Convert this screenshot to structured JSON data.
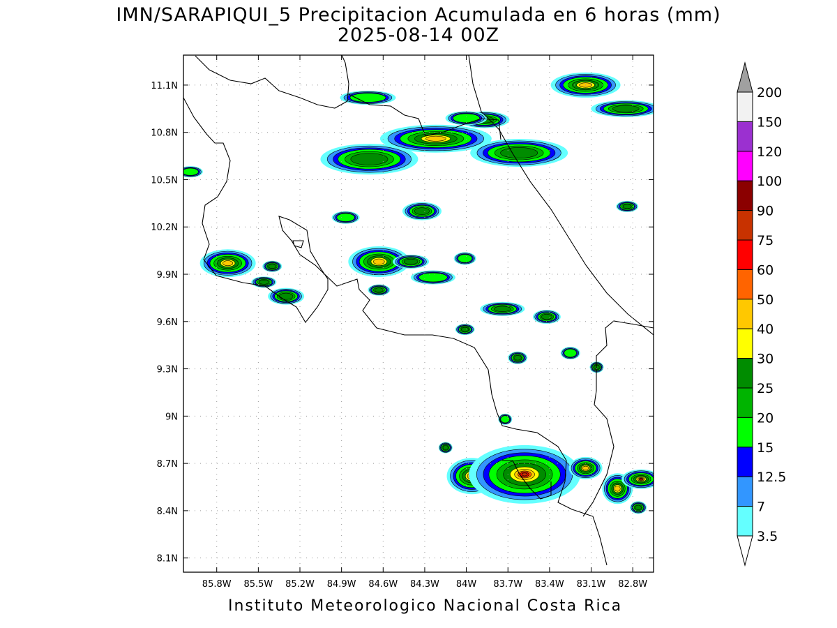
{
  "title": {
    "line1": "IMN/SARAPIQUI_5 Precipitacion Acumulada en 6 horas (mm)",
    "line2": "2025-08-14 00Z"
  },
  "footer": "Instituto Meteorologico Nacional Costa Rica",
  "map": {
    "lon_range": [
      -86.04,
      -82.65
    ],
    "lat_range": [
      8.01,
      11.29
    ],
    "lon_ticks": [
      "85.8W",
      "85.5W",
      "85.2W",
      "84.9W",
      "84.6W",
      "84.3W",
      "84W",
      "83.7W",
      "83.4W",
      "83.1W",
      "82.8W"
    ],
    "lat_ticks": [
      "11.1N",
      "10.8N",
      "10.5N",
      "10.2N",
      "9.9N",
      "9.6N",
      "9.3N",
      "9N",
      "8.7N",
      "8.4N",
      "8.1N"
    ],
    "grid": true
  },
  "colorbar": {
    "labels": [
      "200",
      "150",
      "120",
      "100",
      "90",
      "75",
      "60",
      "50",
      "40",
      "30",
      "25",
      "20",
      "15",
      "12.5",
      "7",
      "3.5"
    ],
    "colors": [
      "#a0a0a0",
      "#f2f2f2",
      "#9b30d0",
      "#ff00ff",
      "#8b0000",
      "#c83200",
      "#ff0000",
      "#ff6400",
      "#ffc800",
      "#ffff00",
      "#008c00",
      "#00b400",
      "#00ff00",
      "#0000ff",
      "#3296ff",
      "#64ffff"
    ]
  },
  "precip_cells": [
    {
      "lon": -85.72,
      "lat": 9.97,
      "rx": 40,
      "ry": 20,
      "level": 3
    },
    {
      "lon": -85.4,
      "lat": 9.95,
      "rx": 14,
      "ry": 8,
      "level": 2
    },
    {
      "lon": -85.46,
      "lat": 9.85,
      "rx": 18,
      "ry": 8,
      "level": 2
    },
    {
      "lon": -85.3,
      "lat": 9.76,
      "rx": 26,
      "ry": 12,
      "level": 2
    },
    {
      "lon": -84.63,
      "lat": 9.98,
      "rx": 44,
      "ry": 22,
      "level": 3
    },
    {
      "lon": -84.63,
      "lat": 9.8,
      "rx": 16,
      "ry": 8,
      "level": 2
    },
    {
      "lon": -84.87,
      "lat": 10.26,
      "rx": 20,
      "ry": 9,
      "level": 1
    },
    {
      "lon": -84.32,
      "lat": 10.3,
      "rx": 28,
      "ry": 13,
      "level": 2
    },
    {
      "lon": -84.24,
      "lat": 9.88,
      "rx": 32,
      "ry": 10,
      "level": 1
    },
    {
      "lon": -84.7,
      "lat": 10.63,
      "rx": 70,
      "ry": 22,
      "level": 2
    },
    {
      "lon": -84.22,
      "lat": 10.76,
      "rx": 80,
      "ry": 20,
      "level": 3
    },
    {
      "lon": -83.62,
      "lat": 10.67,
      "rx": 70,
      "ry": 20,
      "level": 2
    },
    {
      "lon": -83.87,
      "lat": 10.88,
      "rx": 36,
      "ry": 12,
      "level": 2
    },
    {
      "lon": -84.0,
      "lat": 10.89,
      "rx": 30,
      "ry": 10,
      "level": 1
    },
    {
      "lon": -83.14,
      "lat": 11.1,
      "rx": 50,
      "ry": 18,
      "level": 3
    },
    {
      "lon": -82.85,
      "lat": 10.95,
      "rx": 50,
      "ry": 12,
      "level": 2
    },
    {
      "lon": -84.71,
      "lat": 11.02,
      "rx": 40,
      "ry": 10,
      "level": 1
    },
    {
      "lon": -82.84,
      "lat": 10.33,
      "rx": 16,
      "ry": 8,
      "level": 2
    },
    {
      "lon": -85.99,
      "lat": 10.55,
      "rx": 18,
      "ry": 8,
      "level": 1
    },
    {
      "lon": -83.74,
      "lat": 9.68,
      "rx": 32,
      "ry": 10,
      "level": 2
    },
    {
      "lon": -83.42,
      "lat": 9.63,
      "rx": 20,
      "ry": 10,
      "level": 2
    },
    {
      "lon": -84.01,
      "lat": 9.55,
      "rx": 14,
      "ry": 8,
      "level": 2
    },
    {
      "lon": -83.63,
      "lat": 9.37,
      "rx": 14,
      "ry": 9,
      "level": 2
    },
    {
      "lon": -83.25,
      "lat": 9.4,
      "rx": 14,
      "ry": 9,
      "level": 1
    },
    {
      "lon": -83.06,
      "lat": 9.31,
      "rx": 10,
      "ry": 8,
      "level": 2
    },
    {
      "lon": -83.72,
      "lat": 8.98,
      "rx": 10,
      "ry": 8,
      "level": 1
    },
    {
      "lon": -83.96,
      "lat": 8.62,
      "rx": 36,
      "ry": 26,
      "level": 4
    },
    {
      "lon": -83.58,
      "lat": 8.63,
      "rx": 80,
      "ry": 42,
      "level": 5
    },
    {
      "lon": -83.14,
      "lat": 8.67,
      "rx": 24,
      "ry": 16,
      "level": 3
    },
    {
      "lon": -82.91,
      "lat": 8.54,
      "rx": 22,
      "ry": 22,
      "level": 3
    },
    {
      "lon": -82.74,
      "lat": 8.6,
      "rx": 28,
      "ry": 14,
      "level": 4
    },
    {
      "lon": -82.76,
      "lat": 8.42,
      "rx": 12,
      "ry": 9,
      "level": 2
    },
    {
      "lon": -84.15,
      "lat": 8.8,
      "rx": 10,
      "ry": 8,
      "level": 2
    },
    {
      "lon": -84.4,
      "lat": 9.98,
      "rx": 26,
      "ry": 10,
      "level": 2
    },
    {
      "lon": -84.01,
      "lat": 10.0,
      "rx": 16,
      "ry": 9,
      "level": 1
    }
  ]
}
